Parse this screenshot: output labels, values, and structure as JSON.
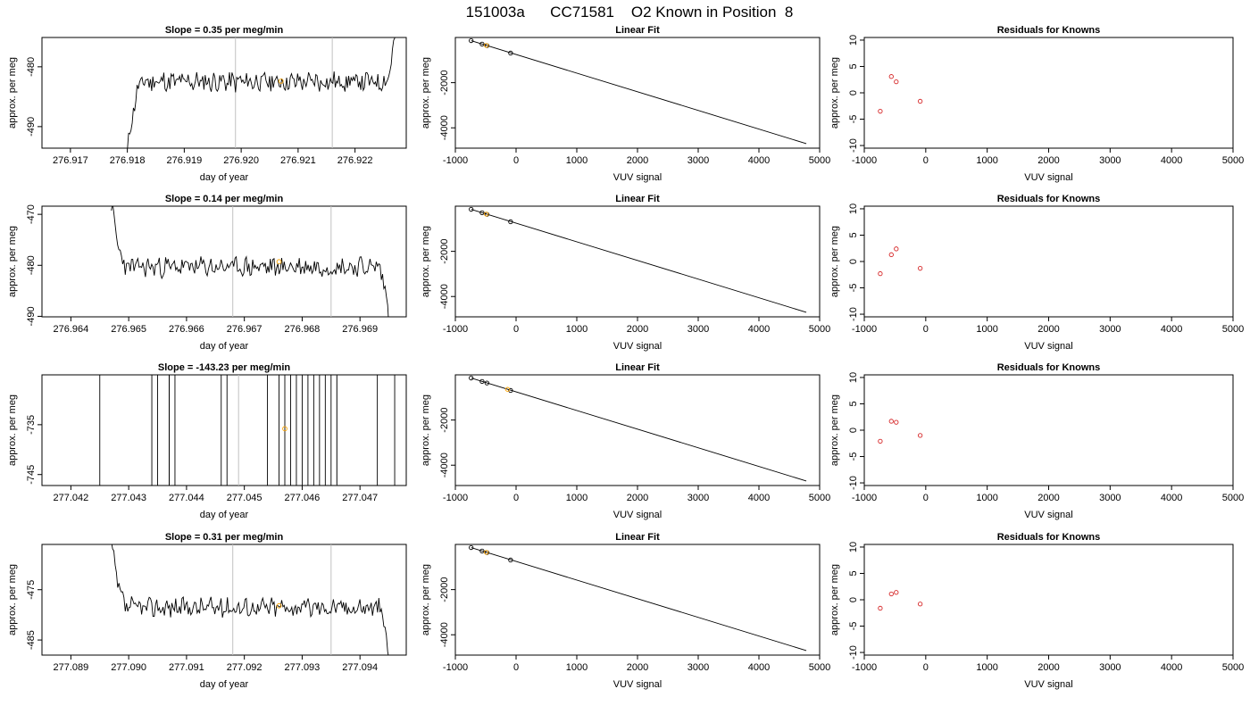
{
  "page_title": "151003a      CC71581    O2 Known in Position  8",
  "colors": {
    "trace": "#000000",
    "window_line": "#c0c0c0",
    "point_standard": "#000000",
    "point_known": "#ffa500",
    "point_residual": "#d62728"
  },
  "chart_data": [
    {
      "type": "line",
      "panel": "time-series",
      "row": 1,
      "title": "Slope =  0.35  per meg/min",
      "xlabel": "day of year",
      "ylabel": "approx. per meg",
      "xlim": [
        276.9165,
        276.9229
      ],
      "ylim": [
        -493.6,
        -475.1
      ],
      "xticks": [
        276.917,
        276.918,
        276.919,
        276.92,
        276.921,
        276.922
      ],
      "xtick_labels": [
        "276.917",
        "276.918",
        "276.919",
        "276.920",
        "276.921",
        "276.922"
      ],
      "yticks": [
        -490,
        -480
      ],
      "ytick_labels": [
        "-490",
        "-480"
      ],
      "window_lines": [
        276.9199,
        276.9216
      ],
      "trace": {
        "start": 276.918,
        "end": 276.9227,
        "level": -482.5,
        "wiggle": 1.5,
        "head": -494.5,
        "tail": -475,
        "seed": 11
      },
      "known_point": {
        "x": 276.9207,
        "y": -482.4
      }
    },
    {
      "type": "line",
      "panel": "time-series",
      "row": 2,
      "title": "Slope =  0.14  per meg/min",
      "xlabel": "day of year",
      "ylabel": "approx. per meg",
      "xlim": [
        276.9635,
        276.9698
      ],
      "ylim": [
        -490.1,
        -468.4
      ],
      "xticks": [
        276.964,
        276.965,
        276.966,
        276.967,
        276.968,
        276.969
      ],
      "xtick_labels": [
        "276.964",
        "276.965",
        "276.966",
        "276.967",
        "276.968",
        "276.969"
      ],
      "yticks": [
        -490,
        -480,
        -470
      ],
      "ytick_labels": [
        "-490",
        "-480",
        "-470"
      ],
      "window_lines": [
        276.9668,
        276.9685
      ],
      "trace": {
        "start": 276.9647,
        "end": 276.9695,
        "level": -480.3,
        "wiggle": 1.7,
        "head": -468,
        "tail": -491,
        "seed": 23
      },
      "known_point": {
        "x": 276.9676,
        "y": -479.3
      }
    },
    {
      "type": "line",
      "panel": "time-series",
      "row": 3,
      "title": "Slope =  -143.23  per meg/min",
      "xlabel": "day of year",
      "ylabel": "approx. per meg",
      "xlim": [
        277.0415,
        277.0478
      ],
      "ylim": [
        -747.2,
        -725.0
      ],
      "xticks": [
        277.042,
        277.043,
        277.044,
        277.045,
        277.046,
        277.047
      ],
      "xtick_labels": [
        "277.042",
        "277.043",
        "277.044",
        "277.045",
        "277.046",
        "277.047"
      ],
      "yticks": [
        -745,
        -735
      ],
      "ytick_labels": [
        "-745",
        "-735"
      ],
      "window_lines": [
        277.0449,
        277.0466
      ],
      "spikes": [
        277.0425,
        277.0434,
        277.0435,
        277.0437,
        277.0437,
        277.0438,
        277.0446,
        277.0447,
        277.0454,
        277.0456,
        277.0457,
        277.0458,
        277.0459,
        277.046,
        277.0461,
        277.0462,
        277.0463,
        277.0464,
        277.0465,
        277.0466,
        277.0473,
        277.0476
      ],
      "known_point": {
        "x": 277.0457,
        "y": -735.8
      }
    },
    {
      "type": "line",
      "panel": "time-series",
      "row": 4,
      "title": "Slope =  0.31  per meg/min",
      "xlabel": "day of year",
      "ylabel": "approx. per meg",
      "xlim": [
        277.0885,
        277.0948
      ],
      "ylim": [
        -488.0,
        -466.0
      ],
      "xticks": [
        277.089,
        277.09,
        277.091,
        277.092,
        277.093,
        277.094
      ],
      "xtick_labels": [
        "277.089",
        "277.090",
        "277.091",
        "277.092",
        "277.093",
        "277.094"
      ],
      "yticks": [
        -485,
        -475
      ],
      "ytick_labels": [
        "-485",
        "-475"
      ],
      "window_lines": [
        277.0918,
        277.0935
      ],
      "trace": {
        "start": 277.0897,
        "end": 277.0945,
        "level": -478.5,
        "wiggle": 1.7,
        "head": -466,
        "tail": -489,
        "seed": 37
      },
      "known_point": {
        "x": 277.0926,
        "y": -478.2
      }
    },
    {
      "type": "scatter",
      "panel": "linear-fit",
      "rows": [
        1,
        2,
        3,
        4
      ],
      "title": "Linear Fit",
      "xlabel": "VUV signal",
      "ylabel": "approx. per meg",
      "xlim": [
        -1000,
        5000
      ],
      "ylim": [
        -4900,
        0
      ],
      "xticks": [
        -1000,
        0,
        1000,
        2000,
        3000,
        4000,
        5000
      ],
      "xtick_labels": [
        "-1000",
        "0",
        "1000",
        "2000",
        "3000",
        "4000",
        "5000"
      ],
      "yticks": [
        -4000,
        -2000
      ],
      "ytick_labels": [
        "-4000",
        "-2000"
      ],
      "fit_line": {
        "x": [
          -740,
          4780
        ],
        "y": [
          -140,
          -4700
        ]
      },
      "standards": [
        {
          "x": -740,
          "y": -140
        },
        {
          "x": -560,
          "y": -290
        },
        {
          "x": -480,
          "y": -360
        },
        {
          "x": -90,
          "y": -690
        }
      ],
      "known": {
        "x": -490,
        "y": -350
      }
    },
    {
      "type": "scatter",
      "panel": "residuals",
      "rows": [
        1,
        2,
        3,
        4
      ],
      "title": "Residuals for Knowns",
      "xlabel": "VUV signal",
      "ylabel": "approx. per meg",
      "xlim": [
        -1000,
        5000
      ],
      "ylim": [
        -10.5,
        10.5
      ],
      "xticks": [
        -1000,
        0,
        1000,
        2000,
        3000,
        4000,
        5000
      ],
      "xtick_labels": [
        "-1000",
        "0",
        "1000",
        "2000",
        "3000",
        "4000",
        "5000"
      ],
      "yticks": [
        -10,
        -5,
        0,
        5,
        10
      ],
      "ytick_labels": [
        "-10",
        "-5",
        "0",
        "5",
        "10"
      ],
      "residuals": [
        [
          {
            "x": -740,
            "y": -3.5
          },
          {
            "x": -560,
            "y": 3.1
          },
          {
            "x": -480,
            "y": 2.1
          },
          {
            "x": -90,
            "y": -1.6
          }
        ],
        [
          {
            "x": -740,
            "y": -2.3
          },
          {
            "x": -560,
            "y": 1.3
          },
          {
            "x": -480,
            "y": 2.4
          },
          {
            "x": -90,
            "y": -1.3
          }
        ],
        [
          {
            "x": -740,
            "y": -2.1
          },
          {
            "x": -560,
            "y": 1.7
          },
          {
            "x": -480,
            "y": 1.5
          },
          {
            "x": -90,
            "y": -1.0
          }
        ],
        [
          {
            "x": -740,
            "y": -1.6
          },
          {
            "x": -560,
            "y": 1.1
          },
          {
            "x": -480,
            "y": 1.4
          },
          {
            "x": -90,
            "y": -0.8
          }
        ]
      ]
    }
  ]
}
